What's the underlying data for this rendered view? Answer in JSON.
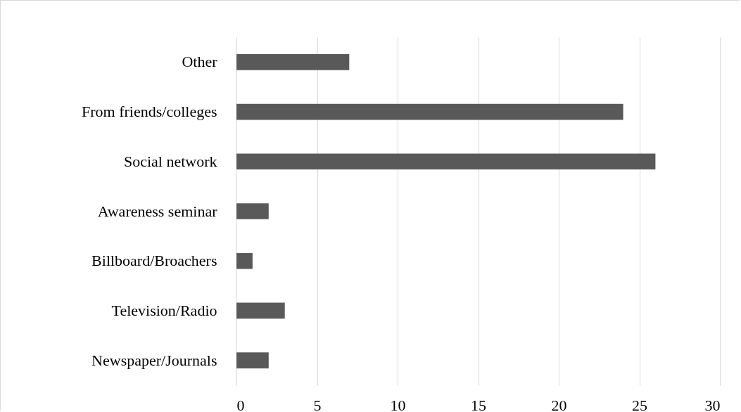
{
  "chart_data": {
    "type": "bar",
    "orientation": "horizontal",
    "categories": [
      "Other",
      "From friends/colleges",
      "Social network",
      "Awareness seminar",
      "Billboard/Broachers",
      "Television/Radio",
      "Newspaper/Journals"
    ],
    "values": [
      7,
      24,
      26,
      2,
      1,
      3,
      2
    ],
    "color": "#595959",
    "xlim": [
      0,
      30
    ],
    "xticks": [
      0,
      5,
      10,
      15,
      20,
      25,
      30
    ],
    "grid": "x"
  }
}
